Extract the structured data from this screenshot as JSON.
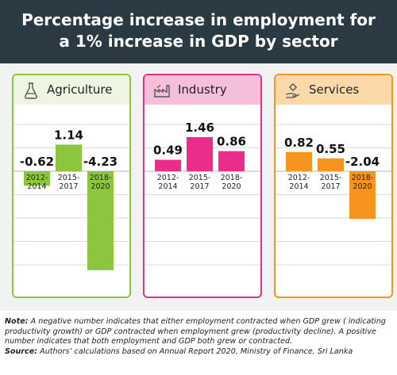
{
  "header": {
    "title_line1": "Percentage increase in employment for",
    "title_line2": "a 1% increase in GDP by sector"
  },
  "colors": {
    "title_bg": "#2b3a42",
    "agriculture_bar": "#8cc63f",
    "agriculture_border": "#8cc63f",
    "agriculture_head": "#eef5e0",
    "industry_bar": "#ea2c8b",
    "industry_border": "#ea2c8b",
    "industry_head": "#f6bfd9",
    "services_bar": "#f7941d",
    "services_border": "#f7941d",
    "services_head": "#fbd9a8"
  },
  "chart_data": [
    {
      "type": "bar",
      "title": "Agriculture",
      "icon": "flask-icon",
      "categories": [
        "2012-\n2014",
        "2015-\n2017",
        "2018-\n2020"
      ],
      "values": [
        -0.62,
        1.14,
        -4.23
      ],
      "value_labels": [
        "-0.62",
        "1.14",
        "-4.23"
      ],
      "ylim": [
        -4.5,
        2.0
      ],
      "grid": true,
      "color": "#8cc63f"
    },
    {
      "type": "bar",
      "title": "Industry",
      "icon": "factory-icon",
      "categories": [
        "2012-\n2014",
        "2015-\n2017",
        "2018-\n2020"
      ],
      "values": [
        0.49,
        1.46,
        0.86
      ],
      "value_labels": [
        "0.49",
        "1.46",
        "0.86"
      ],
      "ylim": [
        -4.5,
        2.0
      ],
      "grid": true,
      "color": "#ea2c8b"
    },
    {
      "type": "bar",
      "title": "Services",
      "icon": "hand-gear-icon",
      "categories": [
        "2012-\n2014",
        "2015-\n2017",
        "2018-\n2020"
      ],
      "values": [
        0.82,
        0.55,
        -2.04
      ],
      "value_labels": [
        "0.82",
        "0.55",
        "-2.04"
      ],
      "ylim": [
        -4.5,
        2.0
      ],
      "grid": true,
      "color": "#f7941d"
    }
  ],
  "notes": {
    "note_label": "Note:",
    "note_text": "A negative number indicates that either employment contracted when GDP grew ( indicating productivity growth) or GDP contracted when employment grew (productivity decline). A positive number indicates that both employment and GDP both grew or contracted.",
    "source_label": "Source:",
    "source_text": "Authors’ calculations based on Annual Report 2020, Ministry of Finance, Sri Lanka"
  }
}
